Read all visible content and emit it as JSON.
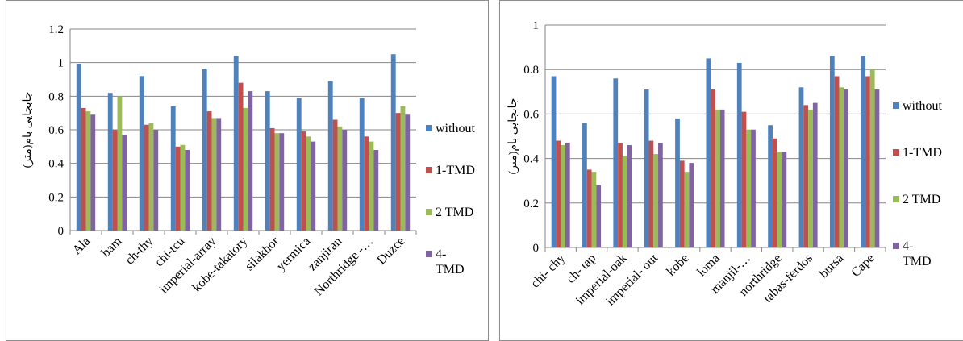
{
  "colors": {
    "without": "#4f81bd",
    "tmd1": "#c0504d",
    "tmd2": "#9bbb59",
    "tmd4": "#8064a2",
    "grid": "#868686"
  },
  "chart_data": [
    {
      "type": "bar",
      "ylabel": "جابجایی بام(متر)",
      "ylim": [
        0,
        1.2
      ],
      "yticks": [
        "0",
        "0.2",
        "0.4",
        "0.6",
        "0.8",
        "1",
        "1.2"
      ],
      "grid": true,
      "legend_position": "right",
      "categories": [
        "Ala",
        "bam",
        "ch-thy",
        "chi-tcu",
        "imperial-array",
        "kobe-takatory",
        "silakhor",
        "yermica",
        "zanjiran",
        "Northridge -…",
        "Duzce"
      ],
      "series": [
        {
          "name": "without",
          "values": [
            0.99,
            0.82,
            0.92,
            0.74,
            0.96,
            1.04,
            0.83,
            0.79,
            0.89,
            0.79,
            1.05
          ]
        },
        {
          "name": "1-TMD",
          "values": [
            0.73,
            0.6,
            0.63,
            0.5,
            0.71,
            0.88,
            0.61,
            0.59,
            0.66,
            0.56,
            0.7
          ]
        },
        {
          "name": "2 TMD",
          "values": [
            0.71,
            0.8,
            0.64,
            0.51,
            0.67,
            0.73,
            0.58,
            0.56,
            0.62,
            0.53,
            0.74
          ]
        },
        {
          "name": "4-TMD",
          "values": [
            0.69,
            0.57,
            0.6,
            0.48,
            0.67,
            0.83,
            0.58,
            0.53,
            0.6,
            0.48,
            0.69
          ]
        }
      ],
      "legend_labels": [
        [
          "without"
        ],
        [
          "1-TMD"
        ],
        [
          "2 TMD"
        ],
        [
          "4-",
          "TMD"
        ]
      ]
    },
    {
      "type": "bar",
      "ylabel": "جابجایی بام(متر)",
      "ylim": [
        0,
        1
      ],
      "yticks": [
        "0",
        "0.2",
        "0.4",
        "0.6",
        "0.8",
        "1"
      ],
      "grid": true,
      "legend_position": "right",
      "categories": [
        "chi- chy",
        "ch- tap",
        "imperial-oak",
        "imperial- out",
        "kobe",
        "loma",
        "manjil-…",
        "northridge",
        "tabas-ferdos",
        "bursa",
        "Cape"
      ],
      "series": [
        {
          "name": "without",
          "values": [
            0.77,
            0.56,
            0.76,
            0.71,
            0.58,
            0.85,
            0.83,
            0.55,
            0.72,
            0.86,
            0.86
          ]
        },
        {
          "name": "1-TMD",
          "values": [
            0.48,
            0.35,
            0.47,
            0.48,
            0.39,
            0.71,
            0.61,
            0.49,
            0.64,
            0.77,
            0.77
          ]
        },
        {
          "name": "2 TMD",
          "values": [
            0.46,
            0.34,
            0.41,
            0.42,
            0.34,
            0.62,
            0.53,
            0.43,
            0.62,
            0.72,
            0.8
          ]
        },
        {
          "name": "4-TMD",
          "values": [
            0.47,
            0.28,
            0.46,
            0.47,
            0.38,
            0.62,
            0.53,
            0.43,
            0.65,
            0.71,
            0.71
          ]
        }
      ],
      "legend_labels": [
        [
          "without"
        ],
        [
          "1-TMD"
        ],
        [
          "2 TMD"
        ],
        [
          "4-",
          "TMD"
        ]
      ]
    }
  ]
}
